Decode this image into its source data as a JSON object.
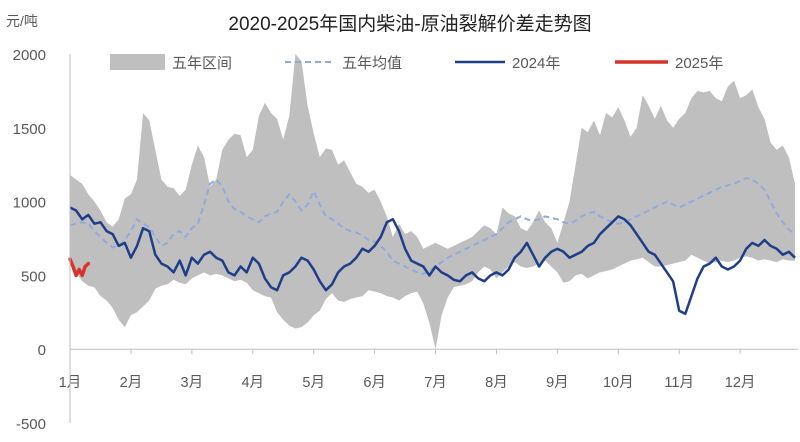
{
  "chart_data": {
    "type": "line",
    "title": "2020-2025年国内柴油-原油裂解价差走势图",
    "unit_label": "元/吨",
    "ylim": [
      -500,
      2000
    ],
    "y_ticks": [
      "2000",
      "1500",
      "1000",
      "500",
      "0",
      "-500"
    ],
    "y_tick_values": [
      2000,
      1500,
      1000,
      500,
      0,
      -500
    ],
    "x_categories": [
      "1月",
      "2月",
      "3月",
      "4月",
      "5月",
      "6月",
      "7月",
      "8月",
      "9月",
      "10月",
      "11月",
      "12月"
    ],
    "legend": [
      "五年区间",
      "五年均值",
      "2024年",
      "2025年"
    ],
    "colors": {
      "range": "#bfbfbf",
      "mean": "#8faadc",
      "y2024": "#1f3e8a",
      "y2025": "#d9342b",
      "axis": "#bfbfbf"
    },
    "series": [
      {
        "name": "五年区间",
        "type": "area",
        "x": [
          0.0,
          0.1,
          0.2,
          0.3,
          0.4,
          0.5,
          0.6,
          0.7,
          0.8,
          0.9,
          1.0,
          1.1,
          1.2,
          1.3,
          1.4,
          1.5,
          1.6,
          1.7,
          1.8,
          1.9,
          2.0,
          2.1,
          2.2,
          2.3,
          2.4,
          2.5,
          2.6,
          2.7,
          2.8,
          2.9,
          3.0,
          3.1,
          3.2,
          3.3,
          3.4,
          3.5,
          3.6,
          3.7,
          3.8,
          3.9,
          4.0,
          4.1,
          4.2,
          4.3,
          4.4,
          4.5,
          4.6,
          4.7,
          4.8,
          4.9,
          5.0,
          5.1,
          5.2,
          5.3,
          5.4,
          5.5,
          5.6,
          5.7,
          5.8,
          5.9,
          6.0,
          6.1,
          6.2,
          6.3,
          6.4,
          6.5,
          6.6,
          6.7,
          6.8,
          6.9,
          7.0,
          7.1,
          7.2,
          7.3,
          7.4,
          7.5,
          7.6,
          7.7,
          7.8,
          7.9,
          8.0,
          8.1,
          8.2,
          8.3,
          8.4,
          8.5,
          8.6,
          8.7,
          8.8,
          8.9,
          9.0,
          9.1,
          9.2,
          9.3,
          9.4,
          9.5,
          9.6,
          9.7,
          9.8,
          9.9,
          10.0,
          10.1,
          10.2,
          10.3,
          10.4,
          10.5,
          10.6,
          10.7,
          10.8,
          10.9,
          11.0,
          11.1,
          11.2,
          11.3,
          11.4,
          11.5,
          11.6,
          11.7,
          11.8,
          11.9
        ],
        "high": [
          1180,
          1150,
          1120,
          1050,
          1000,
          940,
          860,
          830,
          880,
          1020,
          1050,
          1150,
          1600,
          1550,
          1350,
          1150,
          1100,
          1090,
          1040,
          1080,
          1250,
          1380,
          1300,
          1100,
          1150,
          1350,
          1420,
          1460,
          1450,
          1300,
          1350,
          1580,
          1670,
          1600,
          1560,
          1420,
          1580,
          2000,
          1950,
          1650,
          1460,
          1300,
          1360,
          1350,
          1250,
          1280,
          1200,
          1120,
          1100,
          1060,
          1080,
          1000,
          900,
          760,
          850,
          780,
          800,
          760,
          680,
          700,
          720,
          700,
          680,
          700,
          720,
          740,
          760,
          800,
          840,
          820,
          780,
          960,
          920,
          900,
          820,
          800,
          860,
          940,
          860,
          820,
          720,
          860,
          1000,
          1250,
          1500,
          1470,
          1550,
          1450,
          1600,
          1570,
          1640,
          1550,
          1440,
          1500,
          1720,
          1650,
          1560,
          1650,
          1550,
          1500,
          1560,
          1600,
          1700,
          1750,
          1740,
          1750,
          1700,
          1680,
          1780,
          1820,
          1700,
          1720,
          1760,
          1640,
          1560,
          1400,
          1350,
          1380,
          1300,
          1120
        ],
        "low": [
          600,
          520,
          460,
          430,
          420,
          360,
          330,
          280,
          200,
          150,
          230,
          250,
          290,
          330,
          410,
          430,
          440,
          470,
          450,
          440,
          480,
          500,
          520,
          500,
          510,
          500,
          480,
          460,
          470,
          450,
          400,
          380,
          360,
          350,
          250,
          200,
          160,
          140,
          150,
          180,
          230,
          260,
          340,
          380,
          330,
          320,
          340,
          350,
          360,
          400,
          390,
          380,
          360,
          350,
          330,
          360,
          380,
          390,
          310,
          180,
          0,
          230,
          350,
          420,
          430,
          440,
          460,
          520,
          560,
          540,
          480,
          520,
          560,
          590,
          560,
          550,
          560,
          580,
          600,
          560,
          520,
          450,
          460,
          500,
          510,
          480,
          500,
          520,
          530,
          540,
          560,
          580,
          600,
          610,
          620,
          590,
          560,
          560,
          570,
          580,
          590,
          600,
          640,
          620,
          600,
          580,
          590,
          600,
          590,
          600,
          620,
          630,
          620,
          600,
          610,
          600,
          590,
          610,
          600,
          600
        ]
      },
      {
        "name": "五年均值",
        "type": "line",
        "x": [
          0.0,
          0.1,
          0.2,
          0.3,
          0.4,
          0.5,
          0.6,
          0.7,
          0.8,
          0.9,
          1.0,
          1.1,
          1.2,
          1.3,
          1.4,
          1.5,
          1.6,
          1.7,
          1.8,
          1.9,
          2.0,
          2.1,
          2.2,
          2.3,
          2.4,
          2.5,
          2.6,
          2.7,
          2.8,
          2.9,
          3.0,
          3.1,
          3.2,
          3.3,
          3.4,
          3.5,
          3.6,
          3.7,
          3.8,
          3.9,
          4.0,
          4.1,
          4.2,
          4.3,
          4.4,
          4.5,
          4.6,
          4.7,
          4.8,
          4.9,
          5.0,
          5.1,
          5.2,
          5.3,
          5.4,
          5.5,
          5.6,
          5.7,
          5.8,
          5.9,
          6.0,
          6.1,
          6.2,
          6.3,
          6.4,
          6.5,
          6.6,
          6.7,
          6.8,
          6.9,
          7.0,
          7.1,
          7.2,
          7.3,
          7.4,
          7.5,
          7.6,
          7.7,
          7.8,
          7.9,
          8.0,
          8.1,
          8.2,
          8.3,
          8.4,
          8.5,
          8.6,
          8.7,
          8.8,
          8.9,
          9.0,
          9.1,
          9.2,
          9.3,
          9.4,
          9.5,
          9.6,
          9.7,
          9.8,
          9.9,
          10.0,
          10.1,
          10.2,
          10.3,
          10.4,
          10.5,
          10.6,
          10.7,
          10.8,
          10.9,
          11.0,
          11.1,
          11.2,
          11.3,
          11.4,
          11.5,
          11.6,
          11.7,
          11.8,
          11.9
        ],
        "values": [
          840,
          850,
          860,
          850,
          800,
          760,
          720,
          690,
          700,
          740,
          800,
          880,
          850,
          830,
          760,
          700,
          720,
          780,
          800,
          760,
          820,
          850,
          980,
          1120,
          1150,
          1100,
          1000,
          950,
          930,
          900,
          880,
          860,
          900,
          920,
          930,
          1000,
          1050,
          1000,
          940,
          980,
          1070,
          980,
          900,
          880,
          850,
          820,
          800,
          790,
          770,
          740,
          730,
          700,
          660,
          600,
          580,
          560,
          540,
          520,
          510,
          530,
          560,
          590,
          620,
          640,
          660,
          680,
          700,
          720,
          740,
          760,
          780,
          820,
          860,
          880,
          900,
          880,
          870,
          880,
          900,
          890,
          880,
          860,
          850,
          870,
          900,
          920,
          930,
          900,
          880,
          860,
          850,
          860,
          880,
          900,
          920,
          940,
          960,
          980,
          1000,
          980,
          960,
          980,
          1000,
          1020,
          1040,
          1060,
          1080,
          1100,
          1110,
          1120,
          1140,
          1160,
          1150,
          1120,
          1080,
          1000,
          920,
          860,
          810,
          780
        ]
      },
      {
        "name": "2024年",
        "type": "line",
        "x": [
          0.0,
          0.1,
          0.2,
          0.3,
          0.4,
          0.5,
          0.6,
          0.7,
          0.8,
          0.9,
          1.0,
          1.1,
          1.2,
          1.3,
          1.4,
          1.5,
          1.6,
          1.7,
          1.8,
          1.9,
          2.0,
          2.1,
          2.2,
          2.3,
          2.4,
          2.5,
          2.6,
          2.7,
          2.8,
          2.9,
          3.0,
          3.1,
          3.2,
          3.3,
          3.4,
          3.5,
          3.6,
          3.7,
          3.8,
          3.9,
          4.0,
          4.1,
          4.2,
          4.3,
          4.4,
          4.5,
          4.6,
          4.7,
          4.8,
          4.9,
          5.0,
          5.1,
          5.2,
          5.3,
          5.4,
          5.5,
          5.6,
          5.7,
          5.8,
          5.9,
          6.0,
          6.1,
          6.2,
          6.3,
          6.4,
          6.5,
          6.6,
          6.7,
          6.8,
          6.9,
          7.0,
          7.1,
          7.2,
          7.3,
          7.4,
          7.5,
          7.6,
          7.7,
          7.8,
          7.9,
          8.0,
          8.1,
          8.2,
          8.3,
          8.4,
          8.5,
          8.6,
          8.7,
          8.8,
          8.9,
          9.0,
          9.1,
          9.2,
          9.3,
          9.4,
          9.5,
          9.6,
          9.7,
          9.8,
          9.9,
          10.0,
          10.1,
          10.2,
          10.3,
          10.4,
          10.5,
          10.6,
          10.7,
          10.8,
          10.9,
          11.0,
          11.1,
          11.2,
          11.3,
          11.4,
          11.5,
          11.6,
          11.7,
          11.8,
          11.9
        ],
        "values": [
          960,
          940,
          880,
          910,
          850,
          860,
          800,
          780,
          700,
          720,
          620,
          700,
          820,
          800,
          640,
          580,
          560,
          520,
          600,
          500,
          620,
          580,
          640,
          660,
          620,
          600,
          520,
          500,
          560,
          520,
          620,
          580,
          480,
          420,
          400,
          500,
          520,
          560,
          620,
          600,
          540,
          460,
          400,
          440,
          520,
          560,
          580,
          620,
          680,
          660,
          700,
          760,
          860,
          880,
          800,
          680,
          600,
          580,
          560,
          500,
          560,
          520,
          500,
          470,
          460,
          500,
          520,
          480,
          460,
          500,
          520,
          500,
          540,
          620,
          660,
          720,
          640,
          560,
          620,
          660,
          680,
          660,
          620,
          640,
          660,
          700,
          720,
          780,
          820,
          860,
          900,
          880,
          840,
          780,
          720,
          660,
          640,
          580,
          520,
          460,
          260,
          240,
          360,
          480,
          560,
          580,
          620,
          560,
          540,
          560,
          600,
          680,
          720,
          700,
          740,
          700,
          680,
          640,
          660,
          620
        ]
      },
      {
        "name": "2025年",
        "type": "line",
        "x": [
          0.0,
          0.05,
          0.1,
          0.15,
          0.2,
          0.25,
          0.3
        ],
        "values": [
          610,
          560,
          500,
          540,
          500,
          560,
          580
        ]
      }
    ]
  }
}
